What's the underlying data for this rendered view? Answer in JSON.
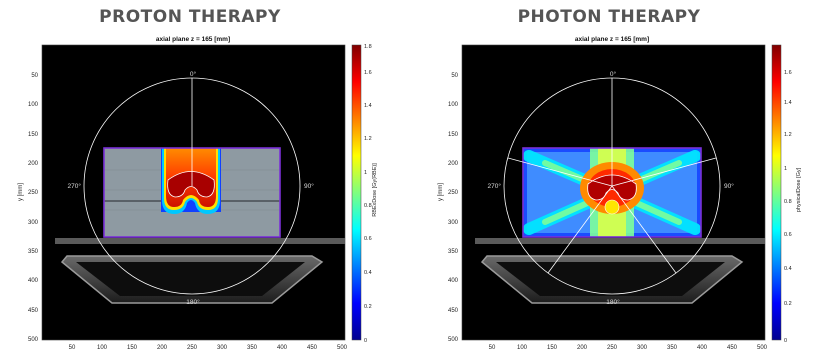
{
  "panels": [
    {
      "heading": "PROTON THERAPY",
      "plot_title": "axial plane z = 165 [mm]",
      "ylabel": "y [mm]",
      "colorbar_label": "RBExDose [Gy(RBE)]",
      "colorbar_ticks": [
        "0",
        "0.2",
        "0.4",
        "0.6",
        "0.8",
        "1",
        "1.2",
        "1.4",
        "1.6",
        "1.8"
      ],
      "angles": {
        "top": "0°",
        "right": "90°",
        "bottom": "180°",
        "left": "270°"
      }
    },
    {
      "heading": "PHOTON THERAPY",
      "plot_title": "axial plane z = 165 [mm]",
      "ylabel": "y [mm]",
      "colorbar_label": "physicalDose [Gy]",
      "colorbar_ticks": [
        "0",
        "0.2",
        "0.4",
        "0.6",
        "0.8",
        "1",
        "1.2",
        "1.4",
        "1.6"
      ],
      "angles": {
        "top": "0°",
        "right": "90°",
        "bottom": "180°",
        "left": "270°"
      }
    }
  ],
  "x_ticks": [
    "50",
    "100",
    "150",
    "200",
    "250",
    "300",
    "350",
    "400",
    "450",
    "500"
  ],
  "y_ticks": [
    "50",
    "100",
    "150",
    "200",
    "250",
    "300",
    "350",
    "400",
    "450",
    "500"
  ],
  "colors": {
    "background": "#000000",
    "phantom": "#8e9aa2",
    "target_contour": "#7a2fd8",
    "beam_lines": "#ffffff",
    "heading": "#555555"
  }
}
